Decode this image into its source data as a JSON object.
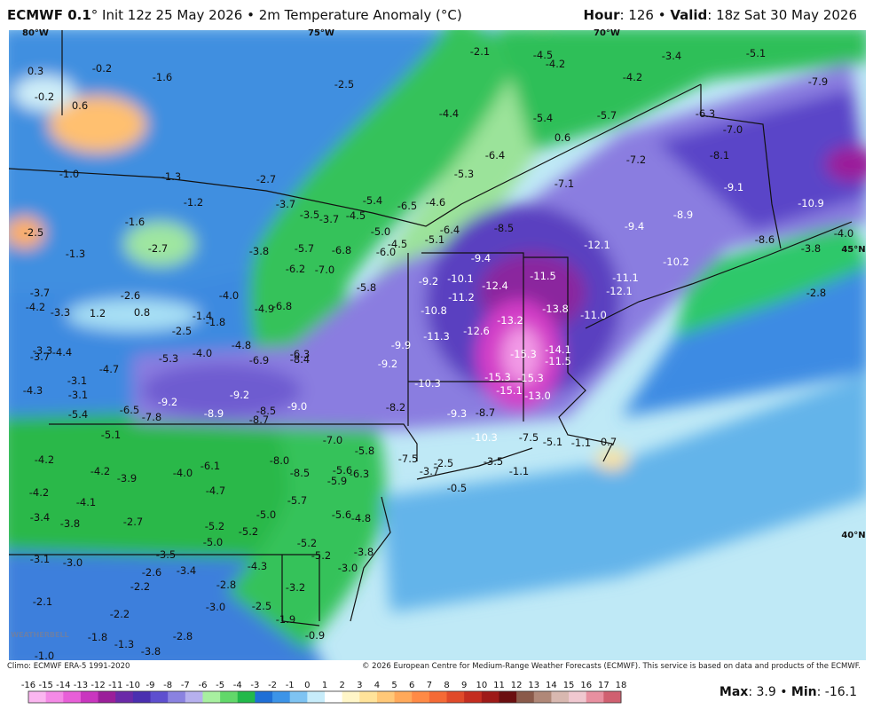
{
  "header": {
    "model": "ECMWF 0.1",
    "title_rest": "° Init 12z 25 May 2026 • 2m Temperature Anomaly (°C)",
    "hour_label": "Hour",
    "hour_value": ": 126 • ",
    "valid_label": "Valid",
    "valid_value": ": 18z Sat 30 May 2026"
  },
  "map": {
    "grid_labels": [
      "80°W",
      "75°W",
      "70°W",
      "45°N",
      "40°N"
    ],
    "logo": "WEATHERBELL",
    "values": [
      "0.3",
      "-0.2",
      "-0.2",
      "0.6",
      "-1.6",
      "-2.5",
      "-2.1",
      "-4.5",
      "-4.2",
      "-3.4",
      "-5.1",
      "-4.2",
      "-7.9",
      "-4.4",
      "-5.4",
      "-5.7",
      "-6.3",
      "-7.0",
      "0.6",
      "-1.0",
      "-1.3",
      "-2.7",
      "-5.3",
      "-6.4",
      "-7.2",
      "-8.1",
      "-7.1",
      "-9.1",
      "-1.2",
      "-3.7",
      "-5.4",
      "-4.6",
      "-6.5",
      "-3.5",
      "-3.7",
      "-4.5",
      "-10.9",
      "-8.9",
      "-1.6",
      "-8.5",
      "-6.4",
      "-9.4",
      "-5.0",
      "-2.5",
      "-5.1",
      "-4.5",
      "-12.1",
      "-8.6",
      "-4.0",
      "-2.7",
      "-3.8",
      "-5.7",
      "-6.8",
      "-6.0",
      "-3.8",
      "-1.3",
      "-9.4",
      "-10.2",
      "-6.2",
      "-7.0",
      "-9.2",
      "-11.5",
      "-11.1",
      "-2.8",
      "-3.7",
      "-2.6",
      "-4.0",
      "-5.8",
      "-10.1",
      "-12.4",
      "-11.2",
      "-12.1",
      "-4.2",
      "-3.3",
      "1.2",
      "0.8",
      "-1.4",
      "-1.8",
      "-4.9",
      "-6.8",
      "-10.8",
      "-13.2",
      "-13.8",
      "-11.0",
      "-2.5",
      "-11.3",
      "-12.6",
      "-4.8",
      "-3.3",
      "-3.7",
      "-4.4",
      "-6.3",
      "-8.4",
      "-9.9",
      "-15.3",
      "-14.1",
      "-4.0",
      "-5.3",
      "-4.7",
      "-6.9",
      "-9.2",
      "-11.5",
      "-3.1",
      "-15.3",
      "-15.3",
      "-4.3",
      "-3.1",
      "-9.2",
      "-9.2",
      "-10.3",
      "-15.1",
      "-13.0",
      "-9.0",
      "-8.2",
      "-8.5",
      "-8.9",
      "-6.5",
      "-7.8",
      "-5.4",
      "-8.7",
      "-9.3",
      "-8.7",
      "-5.1",
      "-7.0",
      "-10.3",
      "-7.5",
      "-5.1",
      "-1.1",
      "0.7",
      "-5.8",
      "-4.2",
      "-6.1",
      "-8.0",
      "-7.5",
      "-2.5",
      "-3.5",
      "-4.2",
      "-3.9",
      "-4.0",
      "-8.5",
      "-5.6",
      "-6.3",
      "-3.7",
      "-1.1",
      "-5.9",
      "-4.2",
      "-4.7",
      "-0.5",
      "-4.1",
      "-5.7",
      "-3.4",
      "-5.0",
      "-5.6",
      "-4.8",
      "-3.8",
      "-2.7",
      "-5.2",
      "-5.2",
      "-5.0",
      "-5.2",
      "-5.2",
      "-3.8",
      "-3.1",
      "-3.0",
      "-3.5",
      "-2.6",
      "-3.4",
      "-4.3",
      "-3.0",
      "-2.2",
      "-2.8",
      "-3.2",
      "-2.1",
      "-3.0",
      "-2.5",
      "-2.2",
      "-1.9",
      "-2.8",
      "-1.8",
      "-1.3",
      "-0.9",
      "-3.8",
      "-1.0"
    ]
  },
  "footer": {
    "climo": "Climo: ECMWF ERA-5 1991-2020",
    "copyright": "© 2026 European Centre for Medium-Range Weather Forecasts (ECMWF). This service is based on data and products of the ECMWF.",
    "max_label": "Max",
    "max_value": ": 3.9 • ",
    "min_label": "Min",
    "min_value": ": -16.1"
  },
  "colorbar": {
    "ticks": [
      -16,
      -15,
      -14,
      -13,
      -12,
      -11,
      -10,
      -9,
      -8,
      -7,
      -6,
      -5,
      -4,
      -3,
      -2,
      -1,
      0,
      1,
      2,
      3,
      4,
      5,
      6,
      7,
      8,
      9,
      10,
      11,
      12,
      13,
      14,
      15,
      16,
      17,
      18
    ],
    "colors": [
      "#fbb6f0",
      "#f48ae6",
      "#e85fd8",
      "#c936bf",
      "#9b1f9a",
      "#6a2aa8",
      "#4a2fb0",
      "#5e4fcf",
      "#8a82e0",
      "#b6b0ee",
      "#a8f0a0",
      "#62d86a",
      "#22b94a",
      "#1f6fd6",
      "#3c94e8",
      "#7ec3f2",
      "#c7ecfa",
      "#ffffff",
      "#fff6c8",
      "#ffe39a",
      "#ffc878",
      "#ffa95a",
      "#ff8a45",
      "#f56a35",
      "#e04a2a",
      "#c42d20",
      "#9e1a18",
      "#6b0f10",
      "#8a5a4a",
      "#b08878",
      "#d8b8b0",
      "#f0c8d0",
      "#e890a0",
      "#d06070"
    ]
  }
}
